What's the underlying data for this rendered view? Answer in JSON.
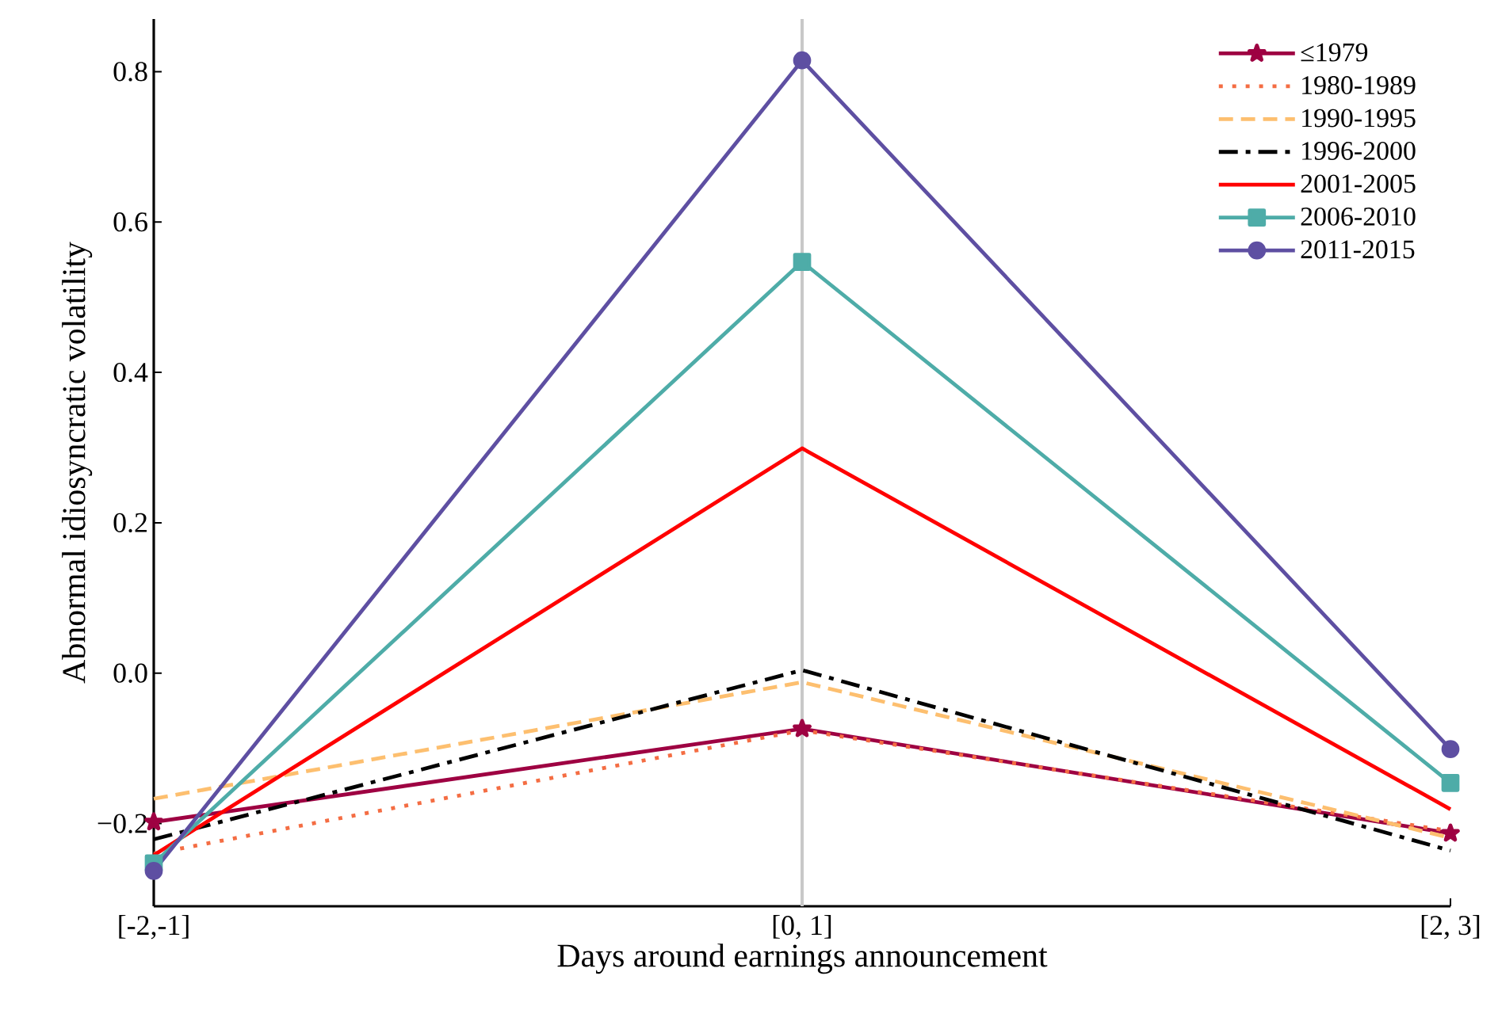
{
  "chart_data": {
    "type": "line",
    "xlabel": "Days around earnings announcement",
    "ylabel": "Abnormal idiosyncratic volatility",
    "categories": [
      "[-2,-1]",
      "[0, 1]",
      "[2, 3]"
    ],
    "series": [
      {
        "name": "≤1979",
        "color": "#9e0142",
        "marker": "star",
        "line_style": "solid",
        "values": [
          -0.198,
          -0.074,
          -0.213
        ]
      },
      {
        "name": "1980-1989",
        "color": "#f46d43",
        "marker": "none",
        "line_style": "dotted",
        "values": [
          -0.24,
          -0.076,
          -0.21
        ]
      },
      {
        "name": "1990-1995",
        "color": "#fdbf6f",
        "marker": "none",
        "line_style": "dashed",
        "values": [
          -0.167,
          -0.012,
          -0.219
        ]
      },
      {
        "name": "1996-2000",
        "color": "#000000",
        "marker": "none",
        "line_style": "dashdot",
        "values": [
          -0.221,
          0.004,
          -0.236
        ]
      },
      {
        "name": "2001-2005",
        "color": "#ff0000",
        "marker": "none",
        "line_style": "solid",
        "values": [
          -0.242,
          0.299,
          -0.181
        ]
      },
      {
        "name": "2006-2010",
        "color": "#4eaca8",
        "marker": "square",
        "line_style": "solid",
        "values": [
          -0.253,
          0.547,
          -0.146
        ]
      },
      {
        "name": "2011-2015",
        "color": "#5e4fa2",
        "marker": "circle",
        "line_style": "solid",
        "values": [
          -0.263,
          0.815,
          -0.101
        ]
      }
    ],
    "ylim": [
      -0.31,
      0.87
    ],
    "yticks": [
      {
        "value": -0.2,
        "label": "−0.2"
      },
      {
        "value": 0.0,
        "label": "0.0"
      },
      {
        "value": 0.2,
        "label": "0.2"
      },
      {
        "value": 0.4,
        "label": "0.4"
      },
      {
        "value": 0.6,
        "label": "0.6"
      },
      {
        "value": 0.8,
        "label": "0.8"
      }
    ],
    "ref_lines": [
      {
        "axis": "x",
        "value": "[0, 1]",
        "color": "#c8c8c8",
        "line_style": "solid"
      }
    ],
    "grid": false,
    "legend": "top right"
  }
}
